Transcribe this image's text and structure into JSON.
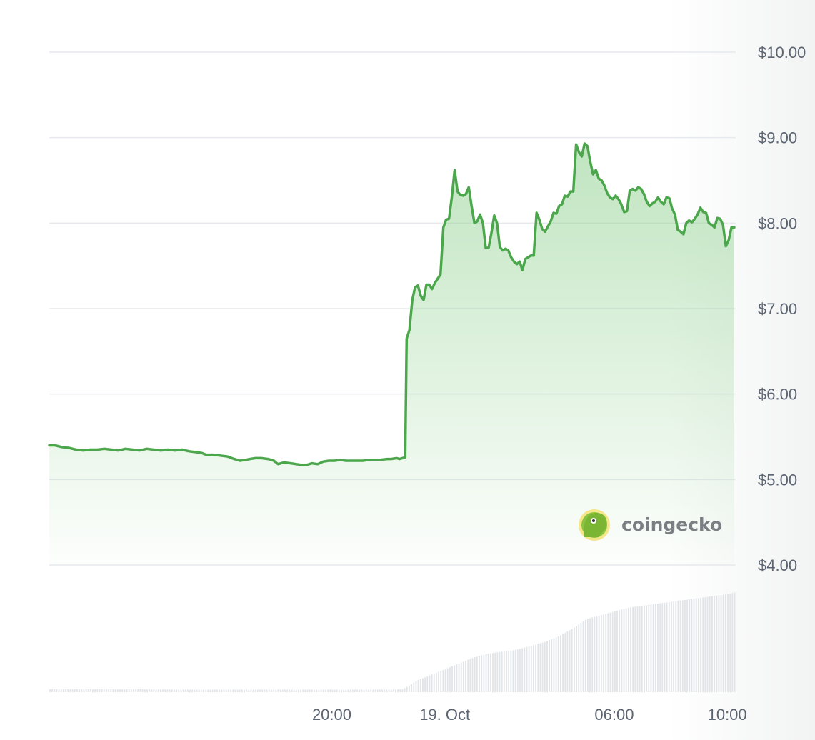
{
  "chart_data": {
    "type": "area",
    "ylim": [
      4,
      10
    ],
    "y_ticks": [
      "$10.00",
      "$9.00",
      "$8.00",
      "$7.00",
      "$6.00",
      "$5.00",
      "$4.00"
    ],
    "y_tick_values": [
      10,
      9,
      8,
      7,
      6,
      5,
      4
    ],
    "x_ticks": [
      "20:00",
      "19. Oct",
      "06:00",
      "10:00"
    ],
    "x_tick_hours": [
      20,
      24,
      30,
      34
    ],
    "x_range_hours": [
      10,
      34.3
    ],
    "grid": true,
    "line_color": "#4ca64c",
    "fill_color": "#8ccf8c",
    "series": [
      {
        "values": [
          [
            10.0,
            5.4
          ],
          [
            10.2,
            5.4
          ],
          [
            10.45,
            5.38
          ],
          [
            10.7,
            5.37
          ],
          [
            10.95,
            5.35
          ],
          [
            11.2,
            5.34
          ],
          [
            11.45,
            5.35
          ],
          [
            11.7,
            5.35
          ],
          [
            11.95,
            5.36
          ],
          [
            12.2,
            5.35
          ],
          [
            12.45,
            5.34
          ],
          [
            12.7,
            5.36
          ],
          [
            12.95,
            5.35
          ],
          [
            13.2,
            5.34
          ],
          [
            13.45,
            5.36
          ],
          [
            13.7,
            5.35
          ],
          [
            13.95,
            5.34
          ],
          [
            14.2,
            5.35
          ],
          [
            14.45,
            5.34
          ],
          [
            14.7,
            5.35
          ],
          [
            14.95,
            5.33
          ],
          [
            15.2,
            5.32
          ],
          [
            15.4,
            5.31
          ],
          [
            15.55,
            5.29
          ],
          [
            15.8,
            5.29
          ],
          [
            16.05,
            5.28
          ],
          [
            16.3,
            5.27
          ],
          [
            16.55,
            5.24
          ],
          [
            16.75,
            5.22
          ],
          [
            16.95,
            5.23
          ],
          [
            17.1,
            5.24
          ],
          [
            17.3,
            5.25
          ],
          [
            17.5,
            5.25
          ],
          [
            17.75,
            5.24
          ],
          [
            17.95,
            5.22
          ],
          [
            18.1,
            5.18
          ],
          [
            18.3,
            5.2
          ],
          [
            18.55,
            5.19
          ],
          [
            18.75,
            5.18
          ],
          [
            18.95,
            5.17
          ],
          [
            19.1,
            5.17
          ],
          [
            19.3,
            5.19
          ],
          [
            19.5,
            5.18
          ],
          [
            19.7,
            5.21
          ],
          [
            19.9,
            5.22
          ],
          [
            20.1,
            5.22
          ],
          [
            20.3,
            5.23
          ],
          [
            20.5,
            5.22
          ],
          [
            20.7,
            5.22
          ],
          [
            20.9,
            5.22
          ],
          [
            21.1,
            5.22
          ],
          [
            21.3,
            5.23
          ],
          [
            21.5,
            5.23
          ],
          [
            21.7,
            5.23
          ],
          [
            21.95,
            5.24
          ],
          [
            22.1,
            5.24
          ],
          [
            22.3,
            5.25
          ],
          [
            22.4,
            5.24
          ],
          [
            22.5,
            5.25
          ],
          [
            22.6,
            5.26
          ],
          [
            22.65,
            6.65
          ],
          [
            22.75,
            6.75
          ],
          [
            22.85,
            7.1
          ],
          [
            22.95,
            7.25
          ],
          [
            23.05,
            7.27
          ],
          [
            23.15,
            7.15
          ],
          [
            23.25,
            7.1
          ],
          [
            23.35,
            7.28
          ],
          [
            23.45,
            7.28
          ],
          [
            23.55,
            7.23
          ],
          [
            23.65,
            7.3
          ],
          [
            23.75,
            7.35
          ],
          [
            23.85,
            7.4
          ],
          [
            23.95,
            7.95
          ],
          [
            24.05,
            8.04
          ],
          [
            24.15,
            8.05
          ],
          [
            24.25,
            8.3
          ],
          [
            24.35,
            8.62
          ],
          [
            24.45,
            8.37
          ],
          [
            24.55,
            8.33
          ],
          [
            24.65,
            8.32
          ],
          [
            24.75,
            8.34
          ],
          [
            24.85,
            8.42
          ],
          [
            24.95,
            8.2
          ],
          [
            25.05,
            8.0
          ],
          [
            25.15,
            8.02
          ],
          [
            25.25,
            8.1
          ],
          [
            25.35,
            8.0
          ],
          [
            25.45,
            7.71
          ],
          [
            25.55,
            7.71
          ],
          [
            25.65,
            7.88
          ],
          [
            25.75,
            8.09
          ],
          [
            25.85,
            8.0
          ],
          [
            25.95,
            7.72
          ],
          [
            26.05,
            7.68
          ],
          [
            26.15,
            7.7
          ],
          [
            26.25,
            7.68
          ],
          [
            26.35,
            7.6
          ],
          [
            26.45,
            7.55
          ],
          [
            26.55,
            7.52
          ],
          [
            26.65,
            7.55
          ],
          [
            26.75,
            7.45
          ],
          [
            26.85,
            7.58
          ],
          [
            26.95,
            7.6
          ],
          [
            27.05,
            7.62
          ],
          [
            27.15,
            7.62
          ],
          [
            27.25,
            8.12
          ],
          [
            27.35,
            8.04
          ],
          [
            27.45,
            7.93
          ],
          [
            27.55,
            7.9
          ],
          [
            27.65,
            7.96
          ],
          [
            27.75,
            8.02
          ],
          [
            27.85,
            8.12
          ],
          [
            27.95,
            8.11
          ],
          [
            28.05,
            8.2
          ],
          [
            28.15,
            8.22
          ],
          [
            28.25,
            8.32
          ],
          [
            28.35,
            8.31
          ],
          [
            28.45,
            8.37
          ],
          [
            28.55,
            8.37
          ],
          [
            28.65,
            8.92
          ],
          [
            28.75,
            8.83
          ],
          [
            28.85,
            8.78
          ],
          [
            28.95,
            8.93
          ],
          [
            29.05,
            8.9
          ],
          [
            29.15,
            8.72
          ],
          [
            29.25,
            8.57
          ],
          [
            29.35,
            8.62
          ],
          [
            29.45,
            8.52
          ],
          [
            29.55,
            8.5
          ],
          [
            29.65,
            8.44
          ],
          [
            29.75,
            8.35
          ],
          [
            29.85,
            8.3
          ],
          [
            29.95,
            8.28
          ],
          [
            30.05,
            8.32
          ],
          [
            30.15,
            8.28
          ],
          [
            30.25,
            8.22
          ],
          [
            30.35,
            8.13
          ],
          [
            30.45,
            8.14
          ],
          [
            30.55,
            8.38
          ],
          [
            30.65,
            8.4
          ],
          [
            30.75,
            8.38
          ],
          [
            30.85,
            8.42
          ],
          [
            30.95,
            8.4
          ],
          [
            31.05,
            8.34
          ],
          [
            31.15,
            8.25
          ],
          [
            31.25,
            8.2
          ],
          [
            31.35,
            8.23
          ],
          [
            31.45,
            8.25
          ],
          [
            31.55,
            8.3
          ],
          [
            31.65,
            8.25
          ],
          [
            31.75,
            8.22
          ],
          [
            31.85,
            8.3
          ],
          [
            31.95,
            8.29
          ],
          [
            32.05,
            8.17
          ],
          [
            32.15,
            8.1
          ],
          [
            32.25,
            7.92
          ],
          [
            32.35,
            7.9
          ],
          [
            32.45,
            7.87
          ],
          [
            32.55,
            8.0
          ],
          [
            32.65,
            8.03
          ],
          [
            32.75,
            8.01
          ],
          [
            32.85,
            8.05
          ],
          [
            32.95,
            8.1
          ],
          [
            33.05,
            8.18
          ],
          [
            33.15,
            8.13
          ],
          [
            33.25,
            8.12
          ],
          [
            33.35,
            8.0
          ],
          [
            33.45,
            7.98
          ],
          [
            33.55,
            7.95
          ],
          [
            33.65,
            8.06
          ],
          [
            33.75,
            8.05
          ],
          [
            33.85,
            7.98
          ],
          [
            33.95,
            7.73
          ],
          [
            34.05,
            7.8
          ],
          [
            34.15,
            7.95
          ],
          [
            34.25,
            7.95
          ]
        ]
      }
    ],
    "volume": {
      "color": "#e1e4e8",
      "values": [
        [
          10,
          1.5
        ],
        [
          11,
          1.5
        ],
        [
          12,
          1.5
        ],
        [
          13,
          1.5
        ],
        [
          14,
          1.4
        ],
        [
          15,
          1.3
        ],
        [
          16,
          1.3
        ],
        [
          17,
          1.3
        ],
        [
          18,
          1.3
        ],
        [
          19,
          1.3
        ],
        [
          20,
          1.3
        ],
        [
          21,
          1.3
        ],
        [
          22,
          1.3
        ],
        [
          22.5,
          1.5
        ],
        [
          23,
          6
        ],
        [
          23.5,
          9
        ],
        [
          24,
          12
        ],
        [
          24.5,
          15
        ],
        [
          25,
          18
        ],
        [
          25.5,
          20
        ],
        [
          26,
          21
        ],
        [
          26.5,
          22
        ],
        [
          27,
          24
        ],
        [
          27.5,
          26
        ],
        [
          28,
          29
        ],
        [
          28.5,
          33
        ],
        [
          29,
          38
        ],
        [
          29.5,
          40
        ],
        [
          30,
          42
        ],
        [
          30.5,
          44
        ],
        [
          31,
          45
        ],
        [
          31.5,
          46
        ],
        [
          32,
          47
        ],
        [
          32.5,
          48
        ],
        [
          33,
          49
        ],
        [
          33.5,
          50
        ],
        [
          34,
          51
        ],
        [
          34.3,
          52
        ]
      ]
    }
  },
  "brand": {
    "name": "coingecko"
  }
}
